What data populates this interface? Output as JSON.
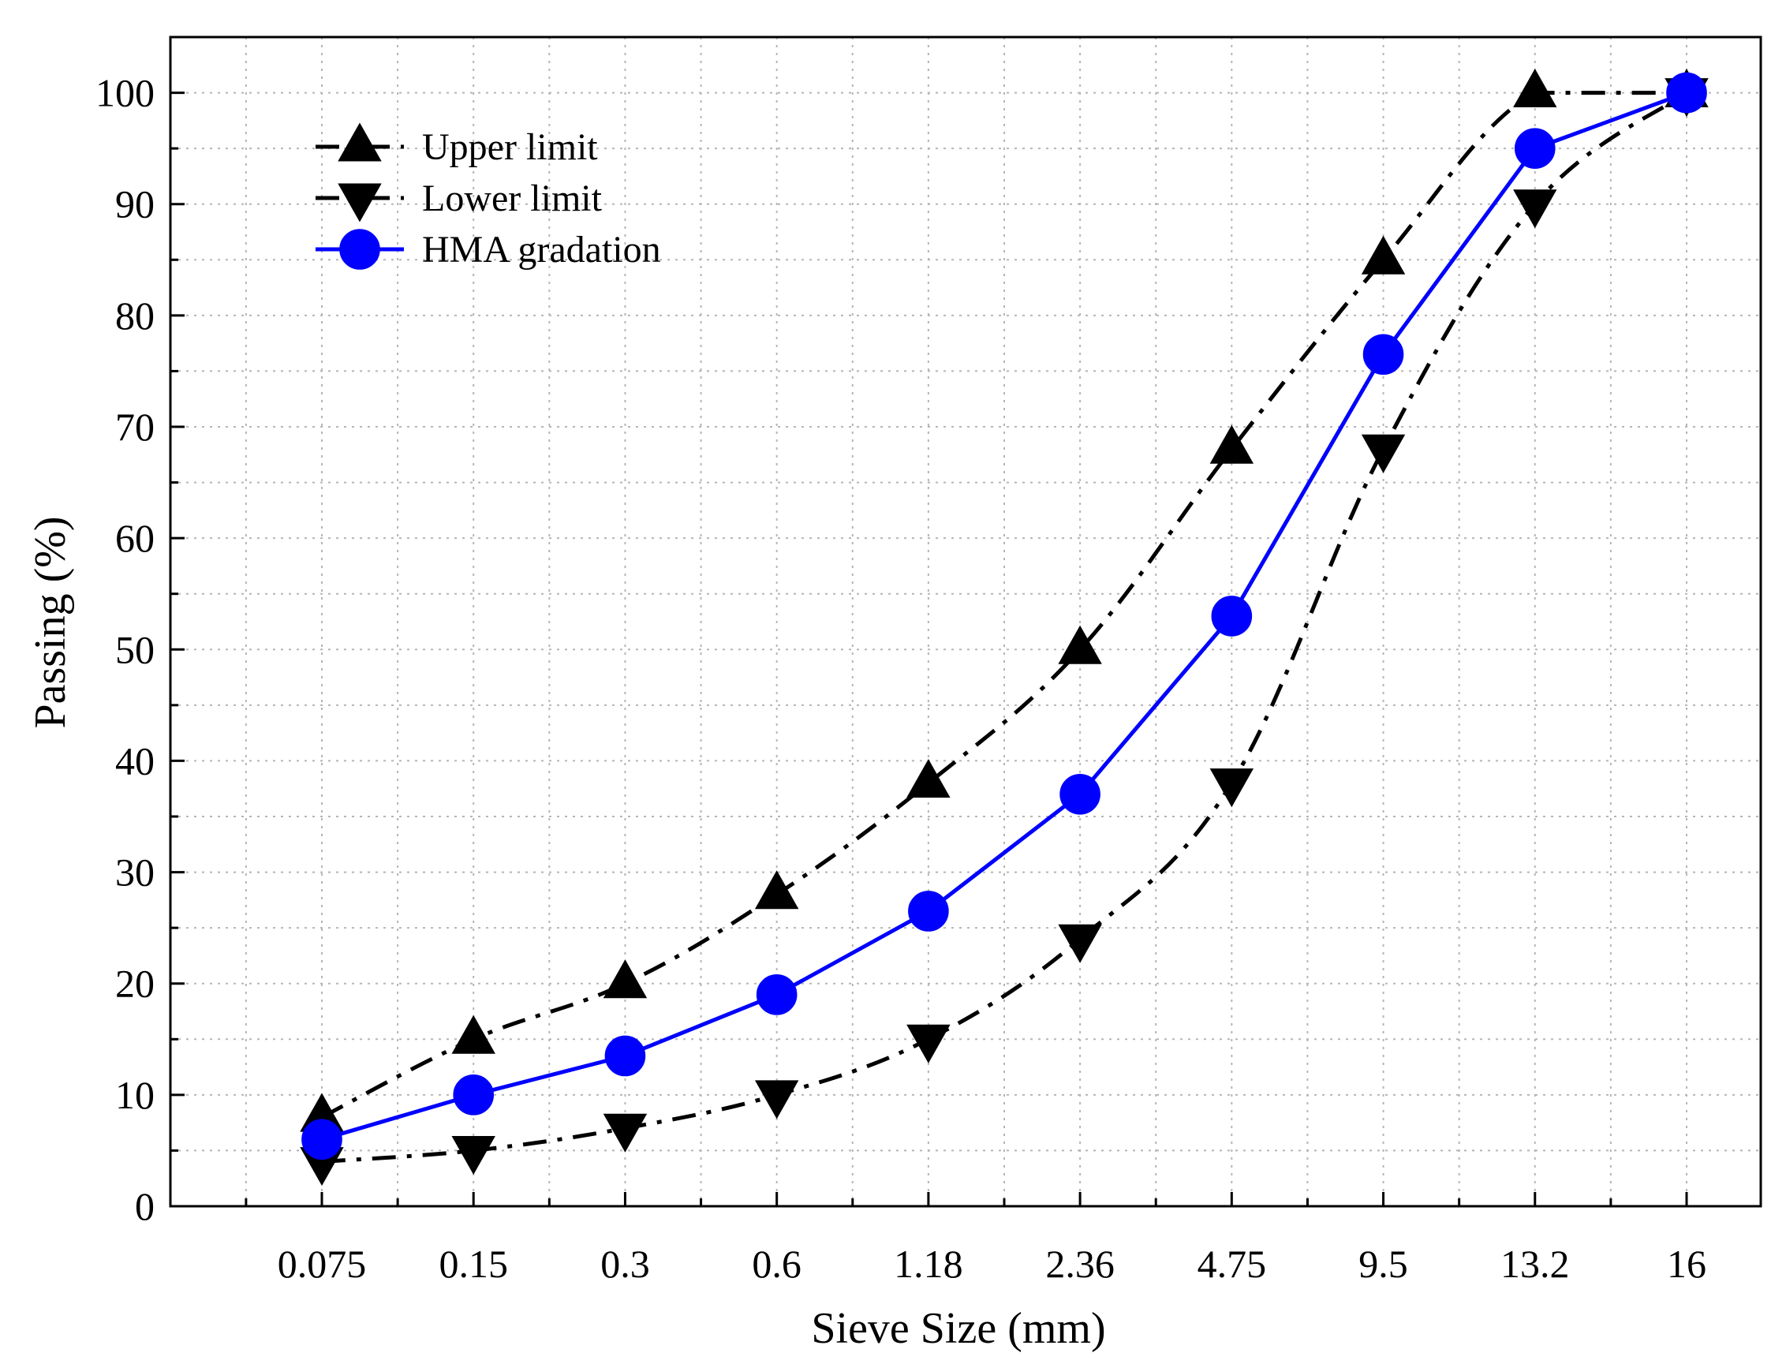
{
  "chart_data": {
    "type": "line",
    "title": "",
    "xlabel": "Sieve Size (mm)",
    "ylabel": "Passing (%)",
    "categories": [
      "0.075",
      "0.15",
      "0.3",
      "0.6",
      "1.18",
      "2.36",
      "4.75",
      "9.5",
      "13.2",
      "16"
    ],
    "ylim": [
      0,
      105
    ],
    "yticks": [
      0,
      10,
      20,
      30,
      40,
      50,
      60,
      70,
      80,
      90,
      100
    ],
    "grid": true,
    "legend_position": "top-left",
    "series": [
      {
        "name": "Upper limit",
        "marker": "triangle-up",
        "line_style": "dash-dot",
        "color": "#000000",
        "values": [
          8,
          15,
          20,
          28,
          38,
          50,
          68,
          85,
          100,
          100
        ]
      },
      {
        "name": "Lower limit",
        "marker": "triangle-down",
        "line_style": "dash-dot",
        "color": "#000000",
        "values": [
          4,
          5,
          7,
          10,
          15,
          24,
          38,
          68,
          90,
          100
        ]
      },
      {
        "name": "HMA gradation",
        "marker": "circle",
        "line_style": "solid",
        "color": "#0000ff",
        "values": [
          6,
          10,
          13.5,
          19,
          26.5,
          37,
          53,
          76.5,
          95,
          100
        ]
      }
    ]
  }
}
